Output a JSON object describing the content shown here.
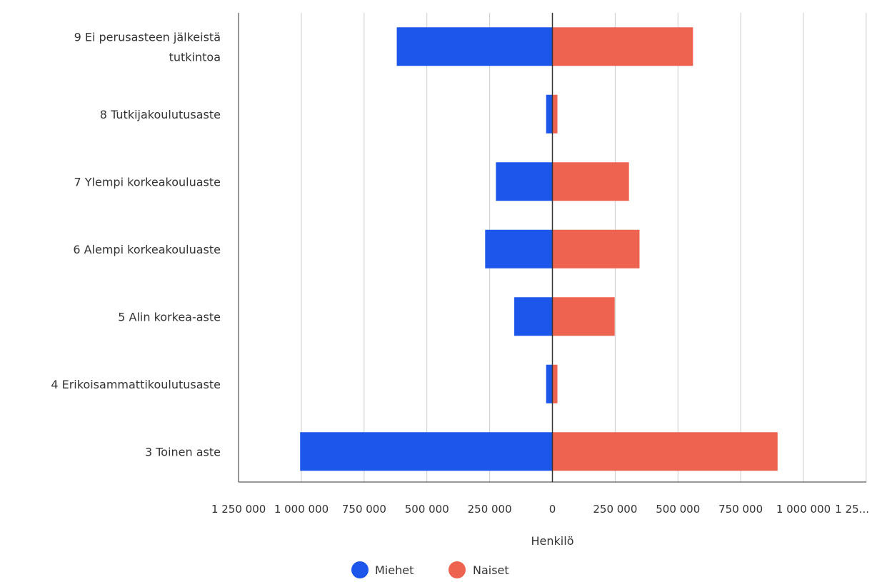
{
  "chart_data": {
    "type": "bar",
    "orientation": "horizontal",
    "layout": "diverging",
    "categories": [
      "9 Ei perusasteen jälkeistä tutkintoa",
      "8 Tutkijakoulutusaste",
      "7 Ylempi korkeakouluaste",
      "6 Alempi korkeakouluaste",
      "5 Alin korkea-aste",
      "4 Erikoisammattikoulutusaste",
      "3 Toinen aste"
    ],
    "category_lines": [
      [
        "9 Ei perusasteen jälkeistä",
        "tutkintoa"
      ],
      [
        "8 Tutkijakoulutusaste"
      ],
      [
        "7 Ylempi korkeakouluaste"
      ],
      [
        "6 Alempi korkeakouluaste"
      ],
      [
        "5 Alin korkea-aste"
      ],
      [
        "4 Erikoisammattikoulutusaste"
      ],
      [
        "3 Toinen aste"
      ]
    ],
    "series": [
      {
        "name": "Miehet",
        "color": "#1c56ea",
        "values": [
          -620000,
          -25000,
          -225000,
          -268000,
          -152000,
          -25000,
          -1005000
        ]
      },
      {
        "name": "Naiset",
        "color": "#ee6350",
        "values": [
          560000,
          20000,
          305000,
          347000,
          248000,
          20000,
          897000
        ]
      }
    ],
    "xlim": [
      -1250000,
      1250000
    ],
    "x_ticks": [
      -1250000,
      -1000000,
      -750000,
      -500000,
      -250000,
      0,
      250000,
      500000,
      750000,
      1000000,
      1250000
    ],
    "x_tick_labels": [
      "1 250 000",
      "1 000 000",
      "750 000",
      "500 000",
      "250 000",
      "0",
      "250 000",
      "500 000",
      "750 000",
      "1 000 000",
      "1 25..."
    ],
    "xlabel": "Henkilö",
    "ylabel": "",
    "title": "",
    "grid": true,
    "legend_position": "bottom"
  }
}
